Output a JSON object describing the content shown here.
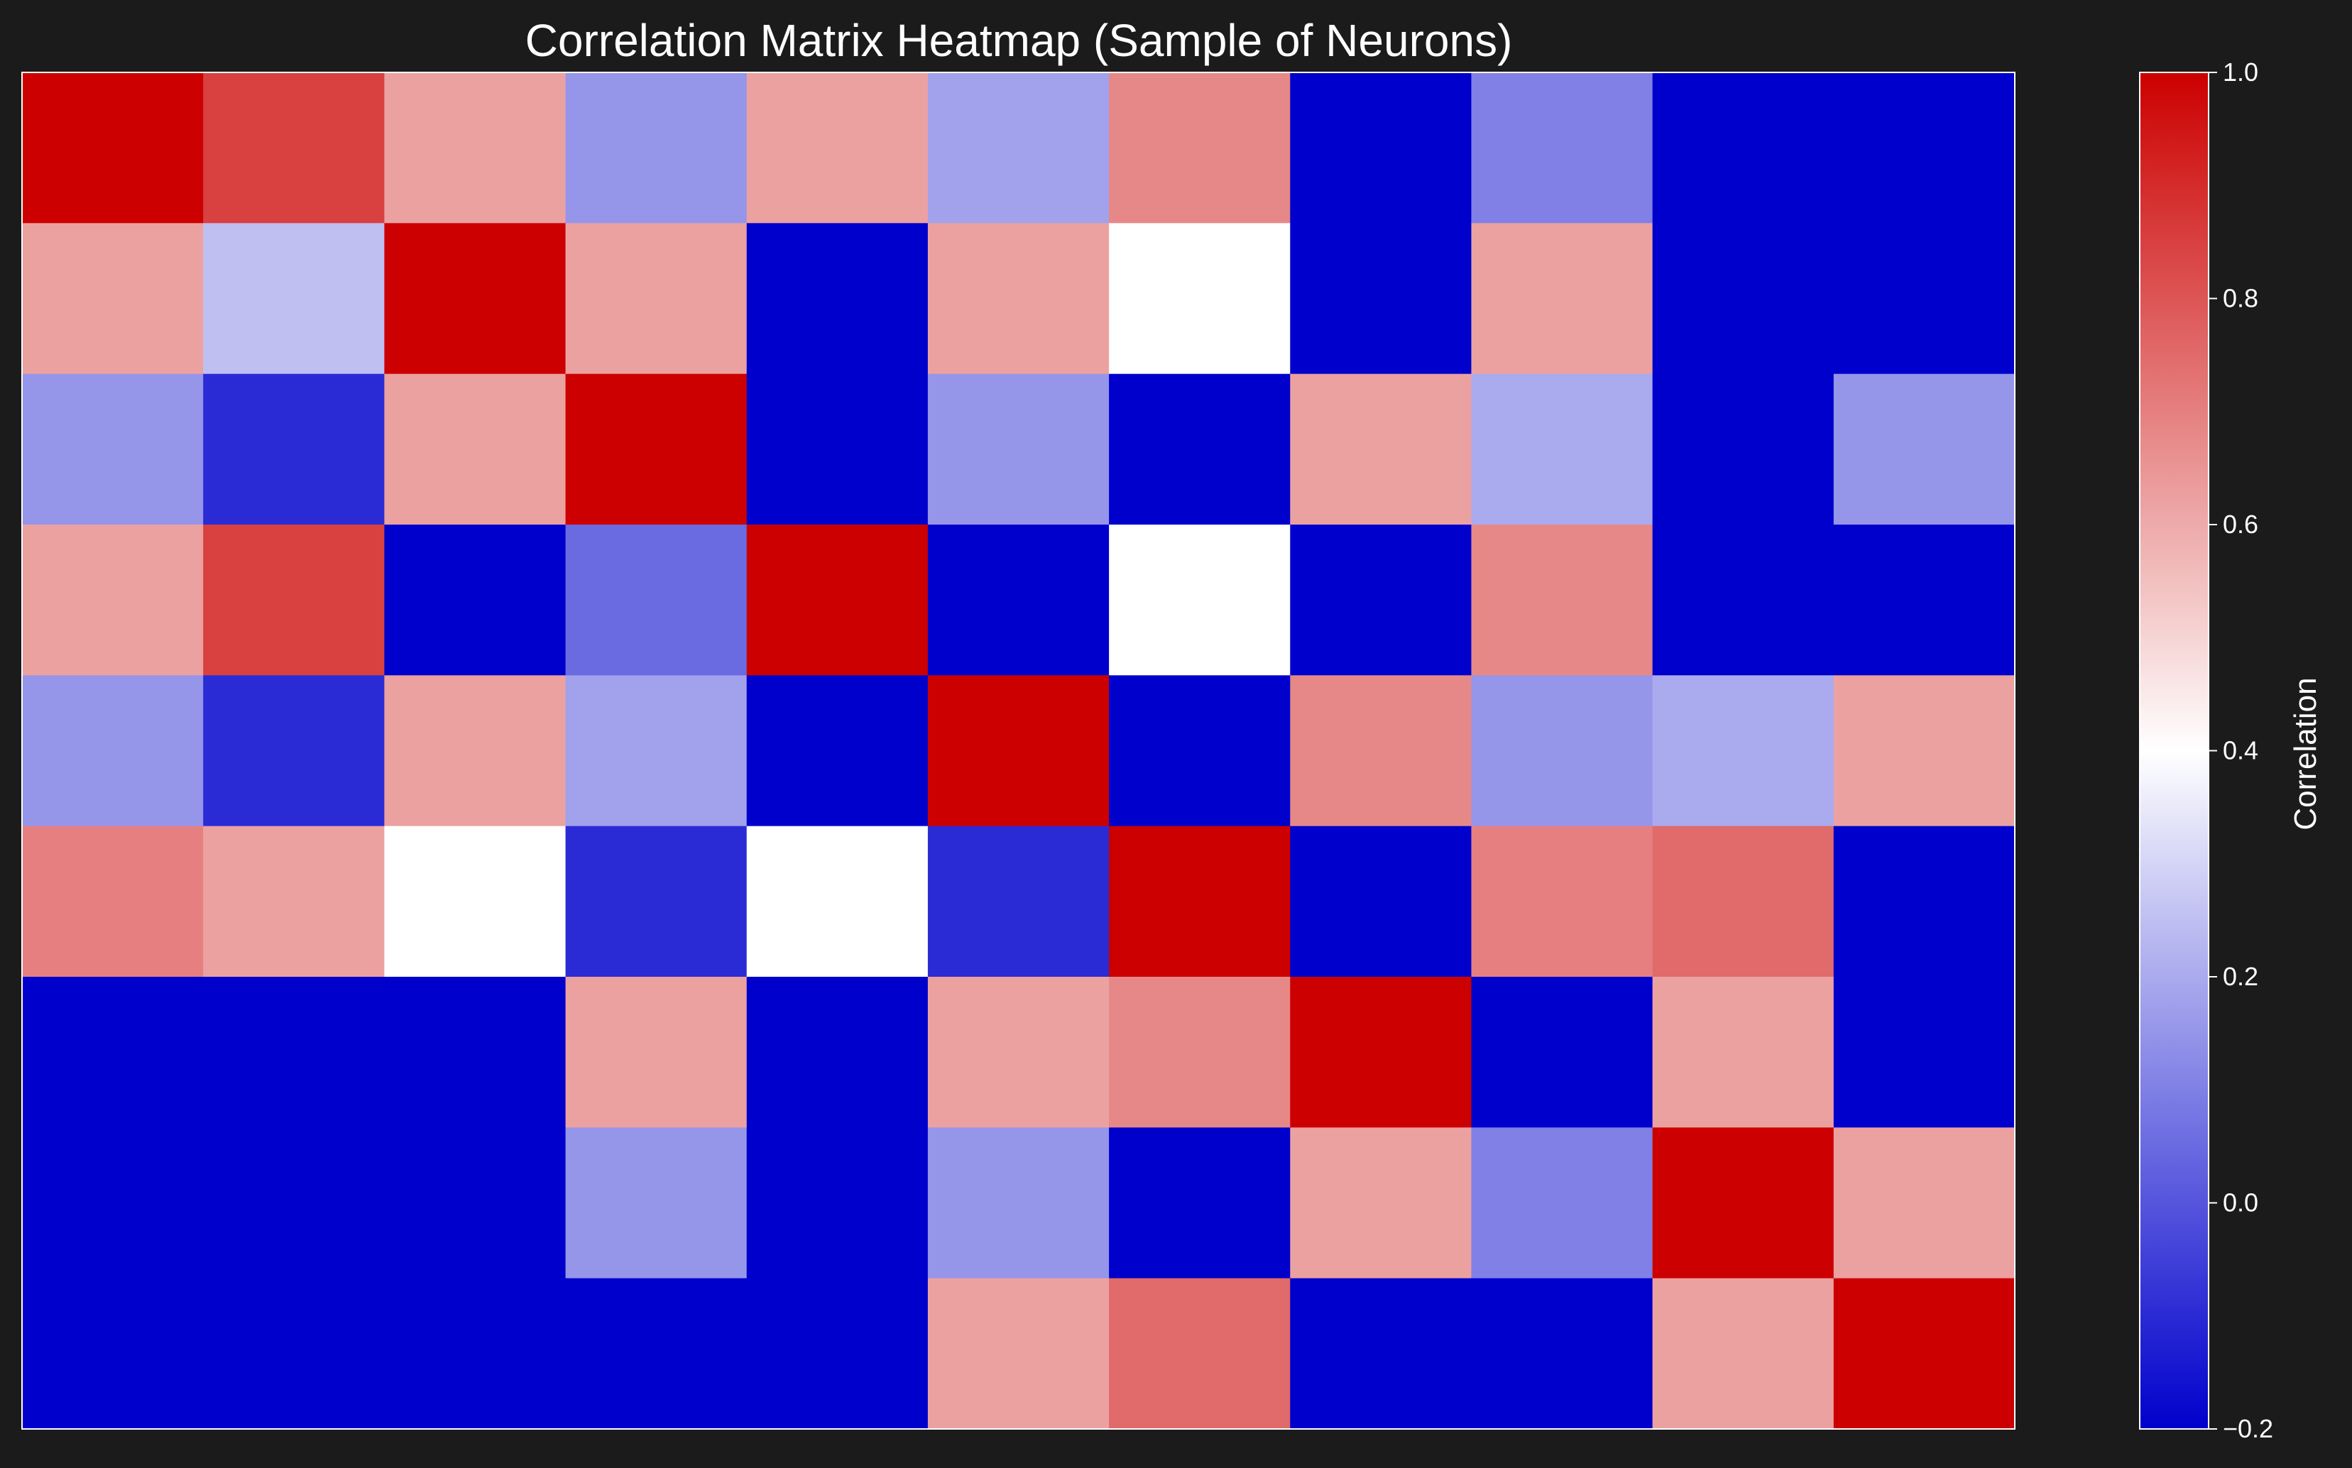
{
  "chart_data": {
    "type": "heatmap",
    "title": "Correlation Matrix Heatmap (Sample of Neurons)",
    "colormap": "bwr",
    "colors": {
      "low": "#0000cc",
      "mid": "#ffffff",
      "high": "#cc0000",
      "background": "#1b1b1b",
      "frame": "#ffffff"
    },
    "value_range": [
      -0.2,
      1.0
    ],
    "colorbar": {
      "label": "Correlation",
      "ticks": [
        1.0,
        0.8,
        0.6,
        0.4,
        0.2,
        0.0,
        -0.2
      ],
      "tick_labels": [
        "1.0",
        "0.8",
        "0.6",
        "0.4",
        "0.2",
        "0.0",
        "−0.2"
      ]
    },
    "x_tick_labels": [],
    "y_tick_labels": [],
    "grid": false,
    "rows": [
      [
        1.0,
        0.85,
        0.62,
        0.15,
        0.62,
        0.18,
        0.68,
        -0.2,
        0.1,
        -0.2,
        -0.2
      ],
      [
        0.62,
        0.25,
        1.0,
        0.62,
        -0.2,
        0.62,
        0.4,
        -0.2,
        0.62,
        -0.2,
        -0.2
      ],
      [
        0.15,
        -0.1,
        0.62,
        1.0,
        -0.2,
        0.15,
        -0.2,
        0.62,
        0.2,
        -0.2,
        0.15
      ],
      [
        0.62,
        0.85,
        -0.2,
        0.05,
        1.0,
        -0.2,
        0.4,
        -0.2,
        0.68,
        -0.2,
        -0.2
      ],
      [
        0.15,
        -0.1,
        0.62,
        0.18,
        -0.2,
        1.0,
        -0.2,
        0.68,
        0.15,
        0.2,
        0.62
      ],
      [
        0.7,
        0.62,
        0.4,
        -0.1,
        0.4,
        -0.1,
        1.0,
        -0.2,
        0.7,
        0.75,
        -0.2
      ],
      [
        -0.2,
        -0.2,
        -0.2,
        0.62,
        -0.2,
        0.62,
        0.68,
        1.0,
        -0.2,
        0.62,
        -0.2
      ],
      [
        -0.2,
        -0.2,
        -0.2,
        0.15,
        -0.2,
        0.15,
        -0.2,
        0.62,
        0.1,
        1.0,
        0.62
      ],
      [
        -0.2,
        -0.2,
        -0.2,
        -0.2,
        -0.2,
        0.62,
        0.75,
        -0.2,
        -0.2,
        0.62,
        1.0
      ]
    ]
  }
}
